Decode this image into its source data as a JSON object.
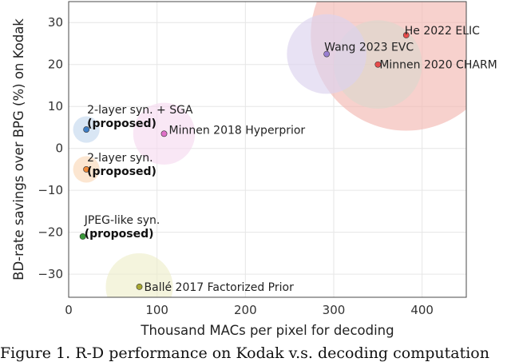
{
  "chart_data": {
    "type": "scatter",
    "title": "",
    "xlabel": "Thousand MACs per pixel for decoding",
    "ylabel": "BD-rate savings over BPG (%) on Kodak",
    "xlim": [
      0,
      450
    ],
    "ylim": [
      -35.5,
      35
    ],
    "xticks": [
      0,
      100,
      200,
      300,
      400
    ],
    "yticks": [
      -30,
      -20,
      -10,
      0,
      10,
      20,
      30
    ],
    "grid": true,
    "legend": "none",
    "points": [
      {
        "label": "He 2022 ELIC",
        "bold": "",
        "x": 382,
        "y": 27,
        "size": 108,
        "color": "#e74c4c",
        "bubble": "#f3b8b2"
      },
      {
        "label": "Minnen 2020 CHARM",
        "bold": "",
        "x": 350,
        "y": 20,
        "size": 50,
        "color": "#e74c4c",
        "bubble": "#dcd7cd"
      },
      {
        "label": "Wang 2023 EVC",
        "bold": "",
        "x": 292,
        "y": 22.5,
        "size": 45,
        "color": "#9a7fd1",
        "bubble": "#dcd3ee"
      },
      {
        "label": "Minnen 2018 Hyperprior",
        "bold": "",
        "x": 108,
        "y": 3.5,
        "size": 35,
        "color": "#e070c8",
        "bubble": "#f6daf0"
      },
      {
        "label": "2-layer syn. + SGA",
        "bold": "(proposed)",
        "x": 20,
        "y": 4.5,
        "size": 15,
        "color": "#3f7fc6",
        "bubble": "#c4d8ee"
      },
      {
        "label": "2-layer syn.",
        "bold": "(proposed)",
        "x": 20,
        "y": -5,
        "size": 15,
        "color": "#ef8a3a",
        "bubble": "#fbd8b8"
      },
      {
        "label": "JPEG-like syn.",
        "bold": "(proposed)",
        "x": 16,
        "y": -21,
        "size": 4,
        "color": "#3a9a3a",
        "bubble": "#c8e6c8"
      },
      {
        "label": "Ballé 2017 Factorized Prior",
        "bold": "",
        "x": 80,
        "y": -33,
        "size": 38,
        "color": "#a8a832",
        "bubble": "#eeeecb"
      }
    ]
  },
  "caption": "Figure 1. R-D performance on Kodak v.s. decoding computation"
}
